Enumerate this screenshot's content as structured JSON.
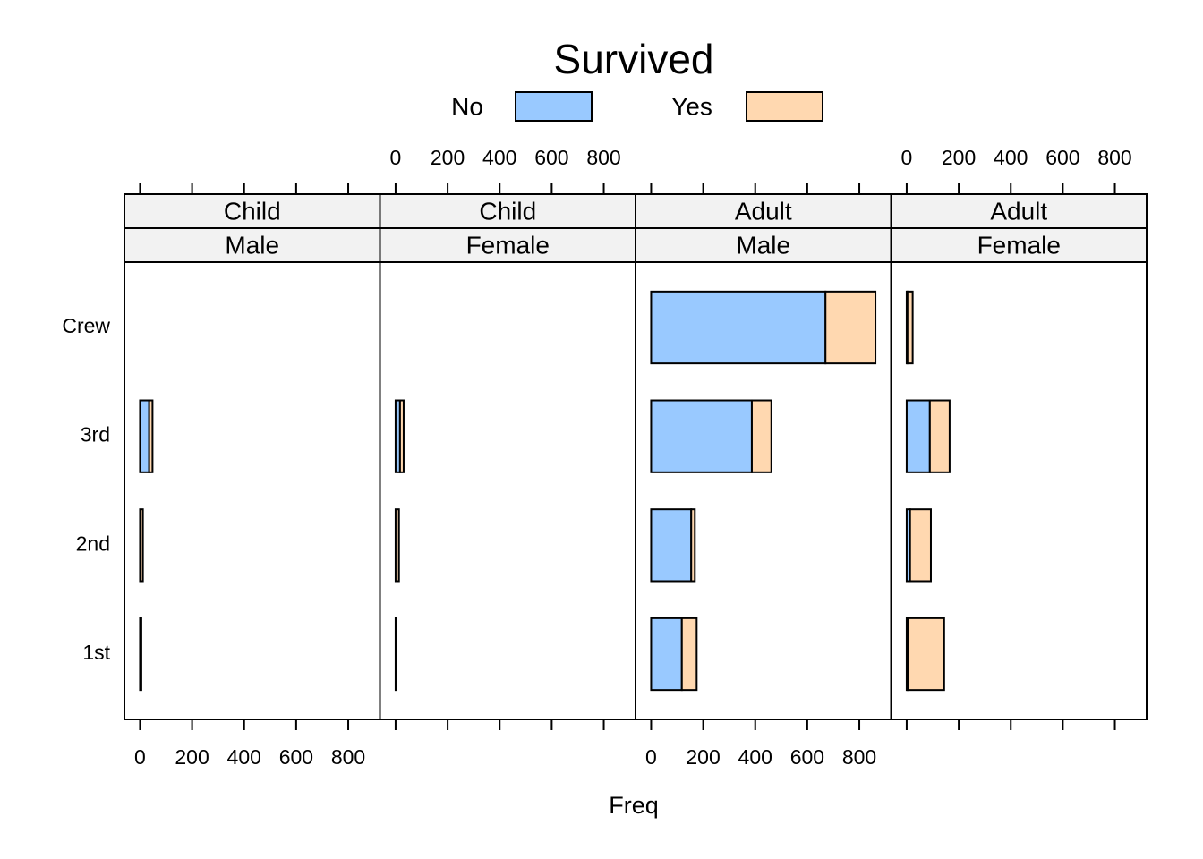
{
  "chart_data": {
    "type": "bar",
    "orientation": "horizontal",
    "stacked": true,
    "legend_title": "Survived",
    "xlabel": "Freq",
    "categories": [
      "1st",
      "2nd",
      "3rd",
      "Crew"
    ],
    "xlim": [
      -60,
      922
    ],
    "xticks": [
      0,
      200,
      400,
      600,
      800
    ],
    "series": [
      {
        "name": "No",
        "color": "#99c9ff",
        "values": [
          [
            0,
            0,
            35,
            0
          ],
          [
            0,
            0,
            17,
            0
          ],
          [
            118,
            154,
            387,
            670
          ],
          [
            4,
            13,
            89,
            3
          ]
        ]
      },
      {
        "name": "Yes",
        "color": "#ffd8b0",
        "values": [
          [
            5,
            11,
            13,
            0
          ],
          [
            1,
            13,
            14,
            0
          ],
          [
            57,
            14,
            75,
            192
          ],
          [
            140,
            80,
            76,
            20
          ]
        ]
      }
    ],
    "panels": [
      {
        "strips": [
          "Child",
          "Male"
        ]
      },
      {
        "strips": [
          "Child",
          "Female"
        ]
      },
      {
        "strips": [
          "Adult",
          "Male"
        ]
      },
      {
        "strips": [
          "Adult",
          "Female"
        ]
      }
    ]
  }
}
